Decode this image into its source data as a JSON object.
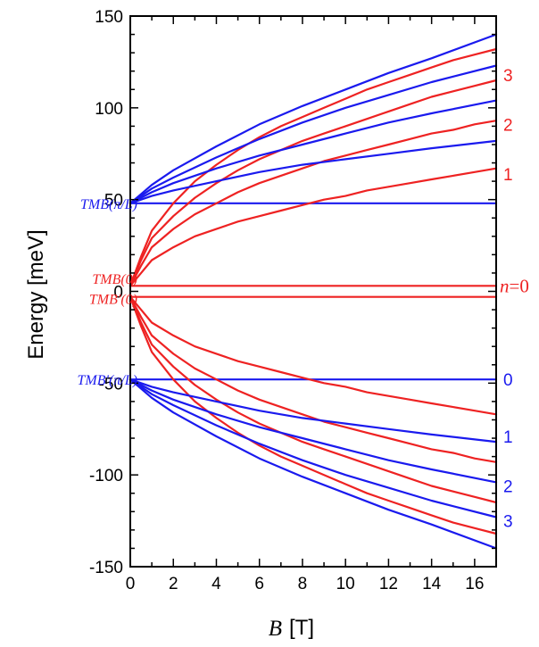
{
  "chart_data": {
    "type": "line",
    "xlabel_symbol": "B",
    "xlabel_unit": "[T]",
    "ylabel": "Energy [meV]",
    "xlim": [
      0,
      17
    ],
    "ylim": [
      -150,
      150
    ],
    "x_ticks": [
      0,
      2,
      4,
      6,
      8,
      10,
      12,
      14,
      16
    ],
    "y_ticks": [
      -150,
      -100,
      -50,
      0,
      50,
      100,
      150
    ],
    "grid": false,
    "colors": {
      "red": "#ee2222",
      "blue": "#1a1aee"
    },
    "annotations_left": [
      {
        "text": "TMB(π/L)",
        "color": "blue",
        "at_y": 48
      },
      {
        "text": "TMB(0)",
        "color": "red",
        "at_y": 7
      },
      {
        "text": "TMB′(0)",
        "color": "red",
        "at_y": -4
      },
      {
        "text": "TMB′(π/L)",
        "color": "blue",
        "at_y": -48
      }
    ],
    "level_labels_right": [
      {
        "text": "3",
        "color": "red",
        "at_y": 118
      },
      {
        "text": "2",
        "color": "red",
        "at_y": 91
      },
      {
        "text": "1",
        "color": "red",
        "at_y": 64
      },
      {
        "text": "n=0",
        "color": "red",
        "at_y": 3,
        "italic_prefix": "n",
        "rest": "=0"
      },
      {
        "text": "0",
        "color": "blue",
        "at_y": -48
      },
      {
        "text": "1",
        "color": "blue",
        "at_y": -79
      },
      {
        "text": "2",
        "color": "blue",
        "at_y": -106
      },
      {
        "text": "3",
        "color": "blue",
        "at_y": -125
      }
    ],
    "series": [
      {
        "color": "red",
        "x": [
          0,
          17
        ],
        "y": [
          3,
          3
        ]
      },
      {
        "color": "red",
        "x": [
          0,
          17
        ],
        "y": [
          -3,
          -3
        ]
      },
      {
        "color": "blue",
        "x": [
          0,
          17
        ],
        "y": [
          48,
          48
        ]
      },
      {
        "color": "blue",
        "x": [
          0,
          17
        ],
        "y": [
          -48,
          -48
        ]
      },
      {
        "color": "red",
        "x": [
          0,
          0.5,
          1,
          2,
          3,
          4,
          5,
          6,
          7,
          8,
          9,
          10,
          11,
          12,
          13,
          14,
          15,
          16,
          17
        ],
        "y": [
          3,
          10,
          17,
          24,
          30,
          34,
          38,
          41,
          44,
          47,
          50,
          52,
          55,
          57,
          59,
          61,
          63,
          65,
          67
        ]
      },
      {
        "color": "red",
        "x": [
          0,
          0.5,
          1,
          2,
          3,
          4,
          5,
          6,
          7,
          8,
          9,
          10,
          11,
          12,
          13,
          14,
          15,
          16,
          17
        ],
        "y": [
          3,
          14,
          24,
          34,
          42,
          48,
          54,
          59,
          63,
          67,
          71,
          74,
          77,
          80,
          83,
          86,
          88,
          91,
          93
        ]
      },
      {
        "color": "red",
        "x": [
          0,
          0.5,
          1,
          2,
          3,
          4,
          5,
          6,
          7,
          8,
          9,
          10,
          11,
          12,
          13,
          14,
          15,
          16,
          17
        ],
        "y": [
          3,
          17,
          29,
          41,
          51,
          59,
          66,
          72,
          77,
          82,
          86,
          90,
          94,
          98,
          102,
          106,
          109,
          112,
          115
        ]
      },
      {
        "color": "red",
        "x": [
          0,
          0.5,
          1,
          2,
          3,
          4,
          5,
          6,
          7,
          8,
          9,
          10,
          11,
          12,
          13,
          14,
          15,
          16,
          17
        ],
        "y": [
          3,
          19,
          33,
          48,
          60,
          69,
          77,
          84,
          90,
          95,
          100,
          105,
          110,
          114,
          118,
          122,
          126,
          129,
          132
        ]
      },
      {
        "color": "blue",
        "x": [
          0,
          1,
          2,
          4,
          6,
          8,
          10,
          12,
          14,
          17
        ],
        "y": [
          48,
          52,
          55,
          60,
          65,
          69,
          72,
          75,
          78,
          82
        ]
      },
      {
        "color": "blue",
        "x": [
          0,
          1,
          2,
          4,
          6,
          8,
          10,
          12,
          14,
          17
        ],
        "y": [
          48,
          54,
          59,
          67,
          74,
          80,
          86,
          92,
          97,
          104
        ]
      },
      {
        "color": "blue",
        "x": [
          0,
          1,
          2,
          4,
          6,
          8,
          10,
          12,
          14,
          17
        ],
        "y": [
          48,
          56,
          62,
          73,
          83,
          92,
          100,
          107,
          114,
          123
        ]
      },
      {
        "color": "blue",
        "x": [
          0,
          1,
          2,
          4,
          6,
          8,
          10,
          12,
          14,
          17
        ],
        "y": [
          48,
          58,
          66,
          79,
          91,
          101,
          110,
          119,
          127,
          140
        ]
      },
      {
        "color": "red",
        "x": [
          0,
          0.5,
          1,
          2,
          3,
          4,
          5,
          6,
          7,
          8,
          9,
          10,
          11,
          12,
          13,
          14,
          15,
          16,
          17
        ],
        "y": [
          -3,
          -10,
          -17,
          -24,
          -30,
          -34,
          -38,
          -41,
          -44,
          -47,
          -50,
          -52,
          -55,
          -57,
          -59,
          -61,
          -63,
          -65,
          -67
        ]
      },
      {
        "color": "red",
        "x": [
          0,
          0.5,
          1,
          2,
          3,
          4,
          5,
          6,
          7,
          8,
          9,
          10,
          11,
          12,
          13,
          14,
          15,
          16,
          17
        ],
        "y": [
          -3,
          -14,
          -24,
          -34,
          -42,
          -48,
          -54,
          -59,
          -63,
          -67,
          -71,
          -74,
          -77,
          -80,
          -83,
          -86,
          -88,
          -91,
          -93
        ]
      },
      {
        "color": "red",
        "x": [
          0,
          0.5,
          1,
          2,
          3,
          4,
          5,
          6,
          7,
          8,
          9,
          10,
          11,
          12,
          13,
          14,
          15,
          16,
          17
        ],
        "y": [
          -3,
          -17,
          -29,
          -41,
          -51,
          -59,
          -66,
          -72,
          -77,
          -82,
          -86,
          -90,
          -94,
          -98,
          -102,
          -106,
          -109,
          -112,
          -115
        ]
      },
      {
        "color": "red",
        "x": [
          0,
          0.5,
          1,
          2,
          3,
          4,
          5,
          6,
          7,
          8,
          9,
          10,
          11,
          12,
          13,
          14,
          15,
          16,
          17
        ],
        "y": [
          -3,
          -19,
          -33,
          -48,
          -60,
          -69,
          -77,
          -84,
          -90,
          -95,
          -100,
          -105,
          -110,
          -114,
          -118,
          -122,
          -126,
          -129,
          -132
        ]
      },
      {
        "color": "blue",
        "x": [
          0,
          1,
          2,
          4,
          6,
          8,
          10,
          12,
          14,
          17
        ],
        "y": [
          -48,
          -52,
          -55,
          -60,
          -65,
          -69,
          -72,
          -75,
          -78,
          -82
        ]
      },
      {
        "color": "blue",
        "x": [
          0,
          1,
          2,
          4,
          6,
          8,
          10,
          12,
          14,
          17
        ],
        "y": [
          -48,
          -54,
          -59,
          -67,
          -74,
          -80,
          -86,
          -92,
          -97,
          -104
        ]
      },
      {
        "color": "blue",
        "x": [
          0,
          1,
          2,
          4,
          6,
          8,
          10,
          12,
          14,
          17
        ],
        "y": [
          -48,
          -56,
          -62,
          -73,
          -83,
          -92,
          -100,
          -107,
          -114,
          -123
        ]
      },
      {
        "color": "blue",
        "x": [
          0,
          1,
          2,
          4,
          6,
          8,
          10,
          12,
          14,
          17
        ],
        "y": [
          -48,
          -58,
          -66,
          -79,
          -91,
          -101,
          -110,
          -119,
          -127,
          -140
        ]
      }
    ]
  }
}
